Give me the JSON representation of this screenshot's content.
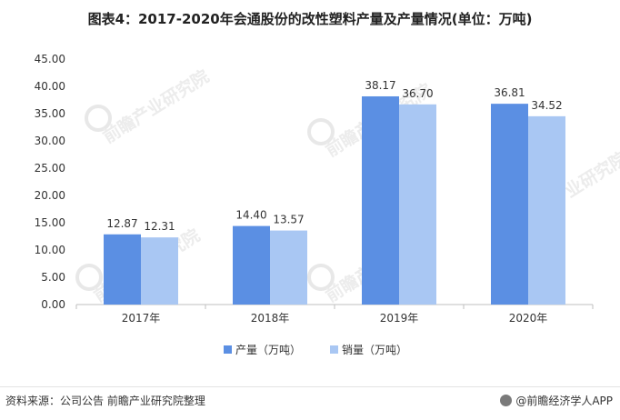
{
  "title": "图表4：2017-2020年会通股份的改性塑料产量及产量情况(单位：万吨)",
  "footer": {
    "source": "资料来源：公司公告 前瞻产业研究院整理",
    "brand": "@前瞻经济学人APP"
  },
  "watermark_text": "前瞻产业研究院",
  "colors": {
    "production": "#5b8fe3",
    "sales": "#a9c7f3",
    "axis": "#bfbfbf",
    "text": "#333333"
  },
  "chart_data": {
    "type": "bar",
    "categories": [
      "2017年",
      "2018年",
      "2019年",
      "2020年"
    ],
    "series": [
      {
        "name": "产量（万吨）",
        "values": [
          12.87,
          14.4,
          38.17,
          36.81
        ]
      },
      {
        "name": "销量（万吨）",
        "values": [
          12.31,
          13.57,
          36.7,
          34.52
        ]
      }
    ],
    "yticks": [
      "0.00",
      "5.00",
      "10.00",
      "15.00",
      "20.00",
      "25.00",
      "30.00",
      "35.00",
      "40.00",
      "45.00"
    ],
    "ylim": [
      0,
      45
    ],
    "grid": false,
    "legend": "bottom"
  }
}
